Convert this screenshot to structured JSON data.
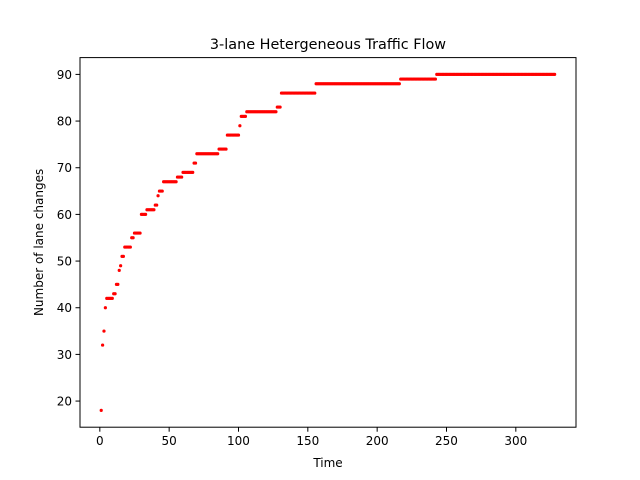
{
  "chart_data": {
    "type": "scatter",
    "title": "3-lane Hetergeneous Traffic Flow",
    "xlabel": "Time",
    "ylabel": "Number of lane changes",
    "xlim": [
      -14.3,
      343.4
    ],
    "ylim": [
      14.4,
      93.6
    ],
    "xticks": [
      0,
      50,
      100,
      150,
      200,
      250,
      300
    ],
    "yticks": [
      20,
      30,
      40,
      50,
      60,
      70,
      80,
      90
    ],
    "marker_color": "#ff0000",
    "grid": false,
    "legend": "none",
    "steps": [
      [
        1,
        18
      ],
      [
        2,
        32
      ],
      [
        3,
        35
      ],
      [
        4,
        40
      ],
      [
        5,
        42
      ],
      [
        10,
        43
      ],
      [
        12,
        45
      ],
      [
        14,
        48
      ],
      [
        15,
        49
      ],
      [
        16,
        51
      ],
      [
        18,
        53
      ],
      [
        23,
        55
      ],
      [
        25,
        56
      ],
      [
        30,
        60
      ],
      [
        34,
        61
      ],
      [
        40,
        62
      ],
      [
        42,
        64
      ],
      [
        43,
        65
      ],
      [
        46,
        67
      ],
      [
        56,
        68
      ],
      [
        60,
        69
      ],
      [
        68,
        71
      ],
      [
        70,
        73
      ],
      [
        86,
        74
      ],
      [
        92,
        77
      ],
      [
        101,
        79
      ],
      [
        102,
        81
      ],
      [
        106,
        82
      ],
      [
        128,
        83
      ],
      [
        131,
        86
      ],
      [
        156,
        88
      ],
      [
        217,
        89
      ],
      [
        243,
        90
      ]
    ],
    "x_end": 328
  }
}
